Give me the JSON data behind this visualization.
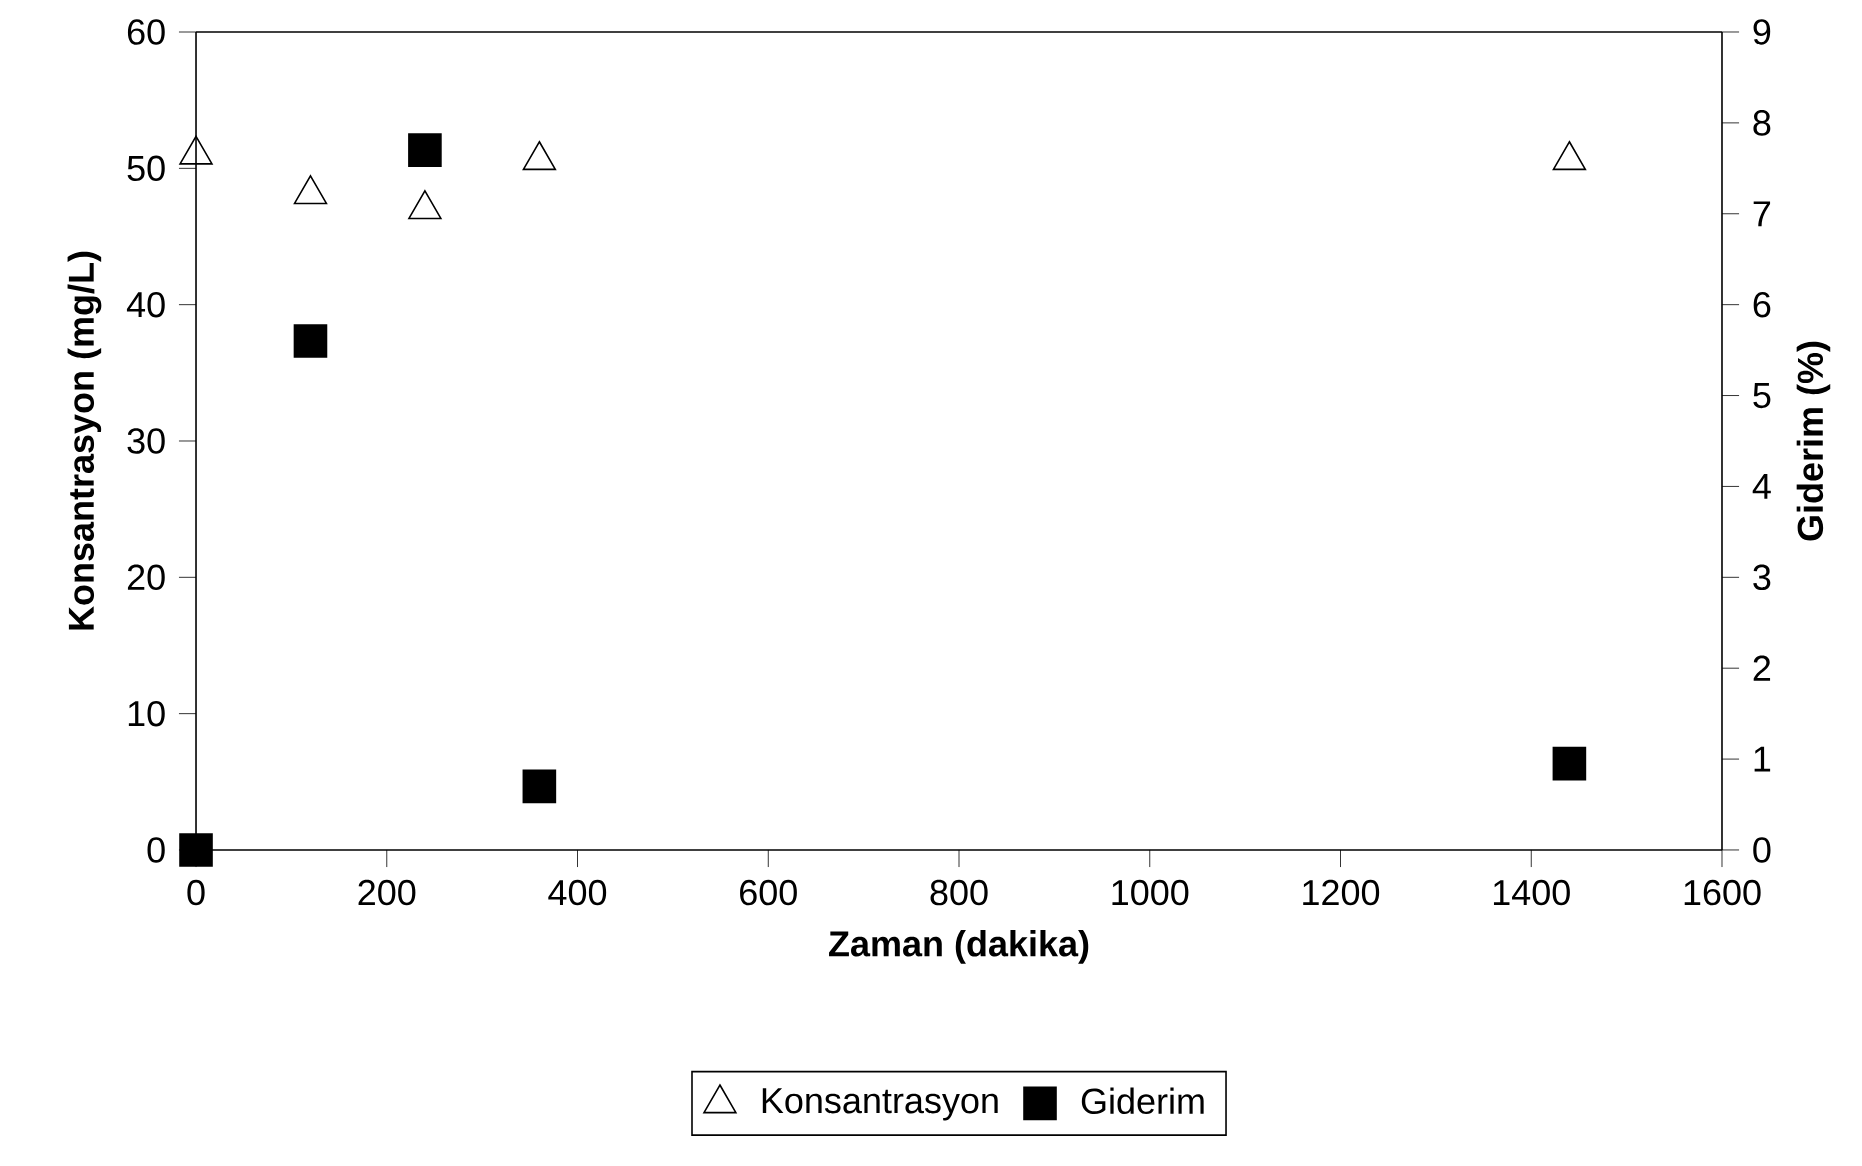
{
  "chart_data": {
    "type": "scatter",
    "xlabel": "Zaman (dakika)",
    "ylabel": "Konsantrasyon (mg/L)",
    "y2label": "Giderim (%)",
    "xlim": [
      0,
      1600
    ],
    "xticks": [
      0,
      200,
      400,
      600,
      800,
      1000,
      1200,
      1400,
      1600
    ],
    "ylim": [
      0,
      60
    ],
    "yticks": [
      0,
      10,
      20,
      30,
      40,
      50,
      60
    ],
    "y2lim": [
      0,
      9
    ],
    "y2ticks": [
      0,
      1,
      2,
      3,
      4,
      5,
      6,
      7,
      8,
      9
    ],
    "x": [
      0,
      120,
      240,
      360,
      1440
    ],
    "series": [
      {
        "name": "Konsantrasyon",
        "color": "#000000",
        "marker": "triangle",
        "values": [
          51,
          48.1,
          47,
          50.6,
          50.6
        ]
      },
      {
        "name": "Giderim",
        "color": "#000000",
        "marker": "square",
        "axis": "y2",
        "values": [
          0,
          5.6,
          7.7,
          0.7,
          0.95
        ]
      }
    ],
    "grid": false,
    "legend": "bottom"
  }
}
